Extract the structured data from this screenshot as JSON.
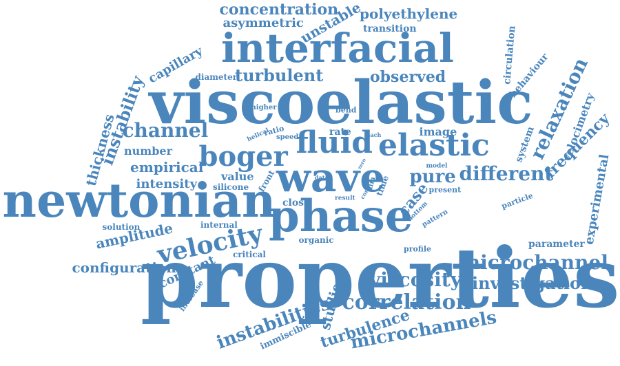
{
  "color": "#4a86bc",
  "words": [
    {
      "id": "properties",
      "text": "properties"
    },
    {
      "id": "viscoelastic",
      "text": "viscoelastic"
    },
    {
      "id": "interfacial",
      "text": "interfacial"
    },
    {
      "id": "newtonian",
      "text": "newtonian"
    },
    {
      "id": "phase",
      "text": "phase"
    },
    {
      "id": "wave",
      "text": "wave"
    },
    {
      "id": "fluid",
      "text": "fluid"
    },
    {
      "id": "elastic",
      "text": "elastic"
    },
    {
      "id": "boger",
      "text": "boger"
    },
    {
      "id": "velocity",
      "text": "velocity"
    },
    {
      "id": "microchannel",
      "text": "microchannel"
    },
    {
      "id": "microchannels",
      "text": "microchannels"
    },
    {
      "id": "correlation",
      "text": "correlation"
    },
    {
      "id": "viscosity",
      "text": "viscosity"
    },
    {
      "id": "investigation",
      "text": "investigation"
    },
    {
      "id": "instabilities",
      "text": "instabilities"
    },
    {
      "id": "channel",
      "text": "channel"
    },
    {
      "id": "turbulent",
      "text": "turbulent"
    },
    {
      "id": "pure",
      "text": "pure"
    },
    {
      "id": "different",
      "text": "different"
    },
    {
      "id": "relaxation",
      "text": "relaxation"
    },
    {
      "id": "concentration",
      "text": "concentration"
    },
    {
      "id": "polyethylene",
      "text": "polyethylene"
    },
    {
      "id": "asymmetric",
      "text": "asymmetric"
    },
    {
      "id": "unstable",
      "text": "unstable"
    },
    {
      "id": "instability",
      "text": "instability"
    },
    {
      "id": "amplitude",
      "text": "amplitude"
    },
    {
      "id": "configuration",
      "text": "configuration"
    },
    {
      "id": "turbulence",
      "text": "turbulence"
    },
    {
      "id": "observed",
      "text": "observed"
    },
    {
      "id": "empirical",
      "text": "empirical"
    },
    {
      "id": "frequency",
      "text": "frequency"
    },
    {
      "id": "experimental",
      "text": "experimental"
    },
    {
      "id": "thickness",
      "text": "thickness"
    },
    {
      "id": "capillary",
      "text": "capillary"
    },
    {
      "id": "intensity",
      "text": "intensity"
    },
    {
      "id": "number",
      "text": "number"
    },
    {
      "id": "case",
      "text": "case"
    },
    {
      "id": "studies",
      "text": "studies"
    },
    {
      "id": "constant",
      "text": "constant"
    },
    {
      "id": "velocimetry",
      "text": "velocimetry"
    },
    {
      "id": "circulation",
      "text": "circulation"
    },
    {
      "id": "behaviour",
      "text": "behaviour"
    },
    {
      "id": "system",
      "text": "system"
    },
    {
      "id": "parameter",
      "text": "parameter"
    },
    {
      "id": "immiscible",
      "text": "immiscible"
    },
    {
      "id": "value",
      "text": "value"
    },
    {
      "id": "close",
      "text": "close"
    },
    {
      "id": "image",
      "text": "image"
    },
    {
      "id": "rate",
      "text": "rate"
    },
    {
      "id": "transition",
      "text": "transition"
    },
    {
      "id": "diameter",
      "text": "diameter"
    },
    {
      "id": "silicone",
      "text": "silicone"
    },
    {
      "id": "front",
      "text": "front"
    },
    {
      "id": "solution",
      "text": "solution"
    },
    {
      "id": "internal",
      "text": "internal"
    },
    {
      "id": "organic",
      "text": "organic"
    },
    {
      "id": "critical",
      "text": "critical"
    },
    {
      "id": "profile",
      "text": "profile"
    },
    {
      "id": "increase",
      "text": "increase"
    },
    {
      "id": "particle",
      "text": "particle"
    },
    {
      "id": "present",
      "text": "present"
    },
    {
      "id": "bend",
      "text": "bend"
    },
    {
      "id": "higher",
      "text": "higher"
    },
    {
      "id": "speed",
      "text": "speed"
    },
    {
      "id": "ratio",
      "text": "ratio"
    },
    {
      "id": "helical",
      "text": "helical"
    },
    {
      "id": "mach",
      "text": "mach"
    },
    {
      "id": "data",
      "text": "data"
    },
    {
      "id": "result",
      "text": "result"
    },
    {
      "id": "film",
      "text": "film"
    },
    {
      "id": "core",
      "text": "core"
    },
    {
      "id": "time",
      "text": "time"
    },
    {
      "id": "model",
      "text": "model"
    },
    {
      "id": "bottom",
      "text": "bottom"
    },
    {
      "id": "pattern",
      "text": "pattern"
    },
    {
      "id": "zero",
      "text": "zero"
    }
  ]
}
